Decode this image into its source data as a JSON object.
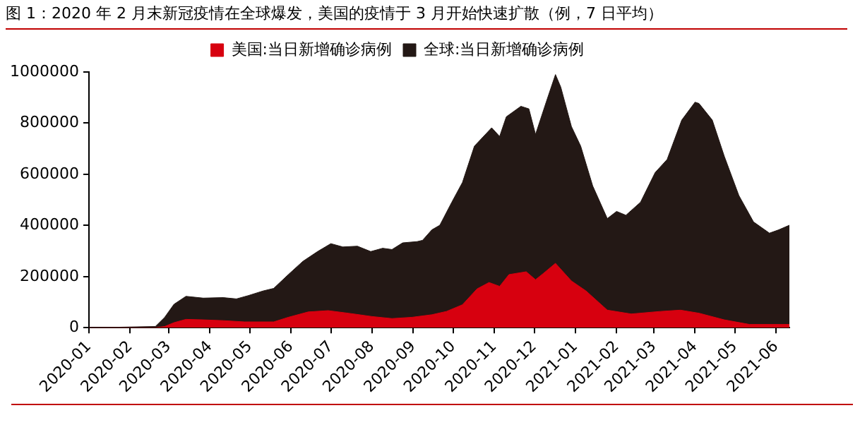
{
  "chart_data": {
    "type": "area",
    "title": "图 1：2020 年 2 月末新冠疫情在全球爆发，美国的疫情于 3 月开始快速扩散（例，7 日平均）",
    "series": [
      {
        "name": "美国:当日新增确诊病例",
        "color": "#d7000f",
        "x": [
          "2020-01-01",
          "2020-02-20",
          "2020-02-27",
          "2020-03-05",
          "2020-03-14",
          "2020-03-27",
          "2020-04-11",
          "2020-04-27",
          "2020-05-19",
          "2020-05-30",
          "2020-06-14",
          "2020-06-29",
          "2020-07-14",
          "2020-08-01",
          "2020-08-16",
          "2020-08-31",
          "2020-09-15",
          "2020-09-26",
          "2020-10-08",
          "2020-10-19",
          "2020-10-28",
          "2020-11-05",
          "2020-11-12",
          "2020-11-25",
          "2020-12-02",
          "2020-12-08",
          "2020-12-17",
          "2020-12-29",
          "2021-01-09",
          "2021-01-25",
          "2021-02-12",
          "2021-03-06",
          "2021-03-21",
          "2021-04-04",
          "2021-04-23",
          "2021-05-12",
          "2021-06-11"
        ],
        "values": [
          0,
          0,
          5000,
          20000,
          33000,
          31000,
          28000,
          23000,
          23000,
          41000,
          62000,
          67000,
          57000,
          44000,
          36000,
          41000,
          51000,
          64000,
          90000,
          152000,
          177000,
          162000,
          208000,
          219000,
          188000,
          213000,
          252000,
          183000,
          144000,
          69000,
          54000,
          64000,
          69000,
          57000,
          31000,
          13000,
          13000
        ]
      },
      {
        "name": "全球:当日新增确诊病例",
        "color": "#231815",
        "x": [
          "2020-01-01",
          "2020-02-20",
          "2020-02-27",
          "2020-03-05",
          "2020-03-14",
          "2020-03-27",
          "2020-04-11",
          "2020-04-21",
          "2020-04-30",
          "2020-05-11",
          "2020-05-19",
          "2020-05-30",
          "2020-06-10",
          "2020-06-21",
          "2020-07-01",
          "2020-07-10",
          "2020-07-21",
          "2020-07-31",
          "2020-08-09",
          "2020-08-16",
          "2020-08-24",
          "2020-09-04",
          "2020-09-08",
          "2020-09-15",
          "2020-09-21",
          "2020-09-30",
          "2020-10-08",
          "2020-10-17",
          "2020-10-30",
          "2020-11-05",
          "2020-11-10",
          "2020-11-21",
          "2020-11-27",
          "2020-12-02",
          "2020-12-10",
          "2020-12-17",
          "2020-12-21",
          "2020-12-29",
          "2021-01-05",
          "2021-01-14",
          "2021-01-25",
          "2021-02-01",
          "2021-02-08",
          "2021-02-19",
          "2021-03-02",
          "2021-03-11",
          "2021-03-22",
          "2021-04-01",
          "2021-04-04",
          "2021-04-14",
          "2021-04-23",
          "2021-05-04",
          "2021-05-15",
          "2021-05-27",
          "2021-06-03",
          "2021-06-11"
        ],
        "values": [
          0,
          5000,
          41000,
          92000,
          123000,
          116000,
          118000,
          113000,
          126000,
          144000,
          154000,
          208000,
          260000,
          298000,
          329000,
          316000,
          319000,
          298000,
          311000,
          306000,
          332000,
          337000,
          342000,
          383000,
          401000,
          491000,
          568000,
          710000,
          782000,
          748000,
          825000,
          866000,
          856000,
          756000,
          882000,
          990000,
          941000,
          787000,
          710000,
          555000,
          427000,
          455000,
          440000,
          491000,
          607000,
          658000,
          812000,
          882000,
          877000,
          812000,
          671000,
          517000,
          414000,
          370000,
          383000,
          401000
        ]
      }
    ],
    "xlim": [
      "2020-01-01",
      "2021-06-11"
    ],
    "xticks": [
      "2020-01",
      "2020-02",
      "2020-03",
      "2020-04",
      "2020-05",
      "2020-06",
      "2020-07",
      "2020-08",
      "2020-09",
      "2020-10",
      "2020-11",
      "2020-12",
      "2021-01",
      "2021-02",
      "2021-03",
      "2021-04",
      "2021-05",
      "2021-06"
    ],
    "ylim": [
      0,
      1000000
    ],
    "yticks": [
      0,
      200000,
      400000,
      600000,
      800000,
      1000000
    ],
    "grid": false,
    "legend": "top",
    "marker": "none"
  }
}
